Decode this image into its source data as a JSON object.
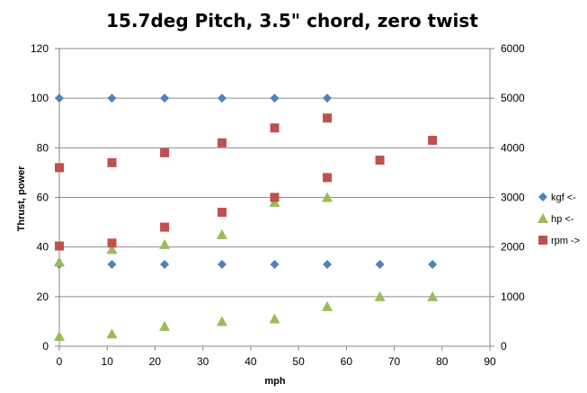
{
  "chart_data": {
    "type": "scatter",
    "title": "15.7deg Pitch, 3.5\" chord, zero twist",
    "xlabel": "mph",
    "ylabel": "Thrust, power",
    "y2label": "",
    "xlim": [
      0,
      90
    ],
    "ylim": [
      0,
      120
    ],
    "y2lim": [
      0,
      6000
    ],
    "x_ticks": [
      0,
      10,
      20,
      30,
      40,
      50,
      60,
      70,
      80,
      90
    ],
    "y_ticks": [
      0,
      20,
      40,
      60,
      80,
      100,
      120
    ],
    "y2_ticks": [
      0,
      1000,
      2000,
      3000,
      4000,
      5000,
      6000
    ],
    "grid": "horizontal major gridlines",
    "legend_position": "right",
    "series": [
      {
        "name": "kgf <-",
        "axis": "left",
        "marker": "diamond",
        "color": "#4F81BD",
        "points": [
          [
            0,
            100
          ],
          [
            11,
            100
          ],
          [
            22,
            100
          ],
          [
            34,
            100
          ],
          [
            45,
            100
          ],
          [
            56,
            100
          ],
          [
            0,
            33
          ],
          [
            11,
            33
          ],
          [
            22,
            33
          ],
          [
            34,
            33
          ],
          [
            45,
            33
          ],
          [
            56,
            33
          ],
          [
            67,
            33
          ],
          [
            78,
            33
          ]
        ]
      },
      {
        "name": "hp <-",
        "axis": "left",
        "marker": "triangle",
        "color": "#9BBB59",
        "points": [
          [
            0,
            34
          ],
          [
            11,
            39
          ],
          [
            22,
            41
          ],
          [
            34,
            45
          ],
          [
            45,
            58
          ],
          [
            56,
            60
          ],
          [
            0,
            4
          ],
          [
            11,
            5
          ],
          [
            22,
            8
          ],
          [
            34,
            10
          ],
          [
            45,
            11
          ],
          [
            56,
            16
          ],
          [
            67,
            20
          ],
          [
            78,
            20
          ]
        ]
      },
      {
        "name": "rpm ->",
        "axis": "right",
        "marker": "square",
        "color": "#C0504D",
        "points": [
          [
            0,
            3600
          ],
          [
            11,
            3700
          ],
          [
            22,
            3900
          ],
          [
            34,
            4100
          ],
          [
            45,
            4400
          ],
          [
            56,
            4600
          ],
          [
            0,
            2020
          ],
          [
            11,
            2080
          ],
          [
            22,
            2400
          ],
          [
            34,
            2700
          ],
          [
            45,
            3000
          ],
          [
            56,
            3400
          ],
          [
            67,
            3750
          ],
          [
            78,
            4150
          ]
        ]
      }
    ]
  }
}
